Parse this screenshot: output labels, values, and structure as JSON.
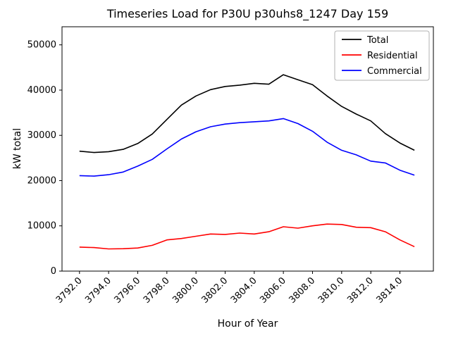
{
  "chart_data": {
    "type": "line",
    "title": "Timeseries Load for P30U p30uhs8_1247  Day 159",
    "xlabel": "Hour of Year",
    "ylabel": "kW total",
    "grid": false,
    "legend_position": "upper right",
    "xlim": [
      3790.8,
      3816.3
    ],
    "ylim": [
      0,
      54000
    ],
    "xticks": [
      3792,
      3794,
      3796,
      3798,
      3800,
      3802,
      3804,
      3806,
      3808,
      3810,
      3812,
      3814
    ],
    "xtick_labels": [
      "3792.0",
      "3794.0",
      "3796.0",
      "3798.0",
      "3800.0",
      "3802.0",
      "3804.0",
      "3806.0",
      "3808.0",
      "3810.0",
      "3812.0",
      "3814.0"
    ],
    "yticks": [
      0,
      10000,
      20000,
      30000,
      40000,
      50000
    ],
    "ytick_labels": [
      "0",
      "10000",
      "20000",
      "30000",
      "40000",
      "50000"
    ],
    "x": [
      3792,
      3793,
      3794,
      3795,
      3796,
      3797,
      3798,
      3799,
      3800,
      3801,
      3802,
      3803,
      3804,
      3805,
      3806,
      3807,
      3808,
      3809,
      3810,
      3811,
      3812,
      3813,
      3814,
      3815
    ],
    "series": [
      {
        "name": "Total",
        "color": "#000000",
        "values": [
          26500,
          26200,
          26400,
          26900,
          28200,
          30300,
          33500,
          36700,
          38700,
          40100,
          40800,
          41100,
          41500,
          41300,
          43400,
          42300,
          41200,
          38700,
          36400,
          34700,
          33200,
          30400,
          28300,
          26700
        ]
      },
      {
        "name": "Residential",
        "color": "#ff0000",
        "values": [
          5300,
          5200,
          4900,
          4950,
          5100,
          5700,
          6900,
          7200,
          7700,
          8200,
          8100,
          8400,
          8200,
          8700,
          9800,
          9500,
          10000,
          10400,
          10300,
          9700,
          9600,
          8700,
          6900,
          5400
        ]
      },
      {
        "name": "Commercial",
        "color": "#0000ff",
        "values": [
          21100,
          21000,
          21300,
          21900,
          23200,
          24700,
          27000,
          29200,
          30800,
          31900,
          32500,
          32800,
          33000,
          33200,
          33700,
          32600,
          30900,
          28500,
          26700,
          25700,
          24300,
          23900,
          22300,
          21200
        ]
      }
    ]
  }
}
